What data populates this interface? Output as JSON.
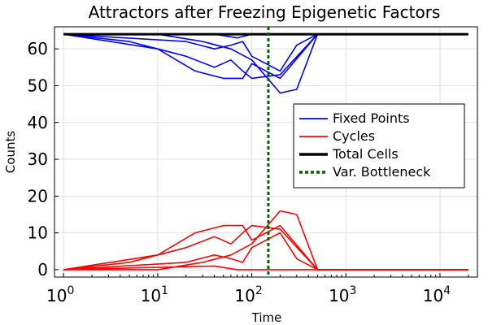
{
  "chart_data": {
    "type": "line",
    "title": "Attractors after Freezing Epigenetic Factors",
    "xlabel": "Time",
    "ylabel": "Counts",
    "xscale": "log",
    "xlim": [
      0.8,
      25000
    ],
    "ylim": [
      -2,
      66
    ],
    "grid": true,
    "legend_position": "center-right",
    "x_ticks": [
      {
        "base": "10",
        "exp": "0",
        "value": 1
      },
      {
        "base": "10",
        "exp": "1",
        "value": 10
      },
      {
        "base": "10",
        "exp": "2",
        "value": 100
      },
      {
        "base": "10",
        "exp": "3",
        "value": 1000
      },
      {
        "base": "10",
        "exp": "4",
        "value": 10000
      }
    ],
    "y_ticks": [
      {
        "label": "0",
        "value": 0
      },
      {
        "label": "10",
        "value": 10
      },
      {
        "label": "20",
        "value": 20
      },
      {
        "label": "30",
        "value": 30
      },
      {
        "label": "40",
        "value": 40
      },
      {
        "label": "50",
        "value": 50
      },
      {
        "label": "60",
        "value": 60
      }
    ],
    "colors": {
      "fixed_points": "#0000ff",
      "cycles": "#ff0000",
      "total_cells": "#000000",
      "bottleneck": "#006400"
    },
    "legend": [
      {
        "label": "Fixed Points",
        "key": "fixed_points",
        "style": "solid"
      },
      {
        "label": "Cycles",
        "key": "cycles",
        "style": "solid"
      },
      {
        "label": "Total Cells",
        "key": "total_cells",
        "style": "solid-thick"
      },
      {
        "label": "Var. Bottleneck",
        "key": "bottleneck",
        "style": "dashed-thick"
      }
    ],
    "fixed_points": [
      {
        "x": [
          1,
          5,
          20,
          40,
          60,
          80,
          100,
          200,
          500,
          20000
        ],
        "y": [
          64,
          62,
          58,
          55,
          57,
          54,
          52,
          53,
          64,
          64
        ]
      },
      {
        "x": [
          1,
          10,
          30,
          60,
          100,
          200,
          300,
          500,
          20000
        ],
        "y": [
          64,
          64,
          62,
          60,
          57,
          48,
          49,
          64,
          64
        ]
      },
      {
        "x": [
          1,
          20,
          40,
          60,
          80,
          100,
          200,
          300,
          500,
          20000
        ],
        "y": [
          64,
          62,
          60,
          61,
          62,
          58,
          54,
          61,
          64,
          64
        ]
      },
      {
        "x": [
          1,
          10,
          25,
          50,
          80,
          100,
          200,
          500,
          20000
        ],
        "y": [
          64,
          60,
          54,
          52,
          52,
          56,
          52,
          64,
          64
        ]
      },
      {
        "x": [
          1,
          40,
          70,
          100,
          200,
          500,
          20000
        ],
        "y": [
          64,
          64,
          63,
          64,
          64,
          64,
          64
        ]
      }
    ],
    "cycles": [
      {
        "x": [
          1,
          5,
          20,
          40,
          60,
          80,
          100,
          200,
          500,
          20000
        ],
        "y": [
          0,
          2,
          6,
          9,
          7,
          10,
          12,
          11,
          0,
          0
        ]
      },
      {
        "x": [
          1,
          10,
          30,
          60,
          100,
          200,
          300,
          500,
          20000
        ],
        "y": [
          0,
          0,
          2,
          4,
          7,
          16,
          15,
          0,
          0
        ]
      },
      {
        "x": [
          1,
          20,
          40,
          60,
          80,
          100,
          200,
          300,
          500,
          20000
        ],
        "y": [
          0,
          2,
          4,
          3,
          2,
          6,
          10,
          3,
          0,
          0
        ]
      },
      {
        "x": [
          1,
          10,
          25,
          50,
          80,
          100,
          200,
          500,
          20000
        ],
        "y": [
          0,
          4,
          10,
          12,
          12,
          8,
          12,
          0,
          0
        ]
      },
      {
        "x": [
          1,
          40,
          70,
          100,
          200,
          300,
          20000
        ],
        "y": [
          0,
          1,
          0,
          0,
          0,
          0,
          0
        ]
      }
    ],
    "total_cells": {
      "x": [
        1,
        20000
      ],
      "y": [
        64,
        64
      ]
    },
    "bottleneck_x": 150
  }
}
